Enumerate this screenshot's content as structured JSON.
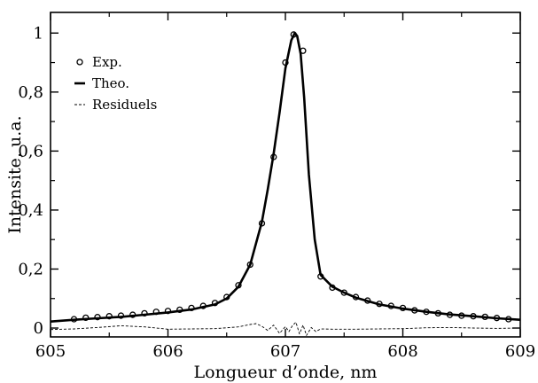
{
  "chart_data": {
    "type": "line",
    "title": "",
    "xlabel": "Longueur d’onde, nm",
    "ylabel": "Intensite, u.a.",
    "xlim": [
      605,
      609
    ],
    "ylim": [
      -0.03,
      1.07
    ],
    "grid": false,
    "legend_position": "top-left",
    "x_ticks": [
      605,
      606,
      607,
      608,
      609
    ],
    "x_tick_labels": [
      "605",
      "606",
      "607",
      "608",
      "609"
    ],
    "y_ticks": [
      0,
      0.2,
      0.4,
      0.6,
      0.8,
      1
    ],
    "y_tick_labels": [
      "0",
      "0,2",
      "0,4",
      "0,6",
      "0,8",
      "1"
    ],
    "series": [
      {
        "name": "Exp.",
        "style": "circles",
        "x": [
          605.2,
          605.3,
          605.4,
          605.5,
          605.6,
          605.7,
          605.8,
          605.9,
          606.0,
          606.1,
          606.2,
          606.3,
          606.4,
          606.5,
          606.6,
          606.7,
          606.8,
          606.9,
          607.0,
          607.07,
          607.15,
          607.3,
          607.4,
          607.5,
          607.6,
          607.7,
          607.8,
          607.9,
          608.0,
          608.1,
          608.2,
          608.3,
          608.4,
          608.5,
          608.6,
          608.7,
          608.8,
          608.9
        ],
        "y": [
          0.03,
          0.035,
          0.037,
          0.04,
          0.042,
          0.045,
          0.05,
          0.055,
          0.058,
          0.062,
          0.068,
          0.075,
          0.085,
          0.105,
          0.145,
          0.215,
          0.355,
          0.58,
          0.9,
          0.995,
          0.94,
          0.175,
          0.137,
          0.12,
          0.105,
          0.093,
          0.082,
          0.075,
          0.068,
          0.06,
          0.055,
          0.05,
          0.045,
          0.042,
          0.04,
          0.038,
          0.034,
          0.03
        ]
      },
      {
        "name": "Theo.",
        "style": "solid",
        "x": [
          605.0,
          605.2,
          605.4,
          605.6,
          605.8,
          606.0,
          606.2,
          606.4,
          606.5,
          606.6,
          606.7,
          606.8,
          606.85,
          606.9,
          606.95,
          607.0,
          607.05,
          607.08,
          607.1,
          607.13,
          607.16,
          607.2,
          607.25,
          607.3,
          607.4,
          607.5,
          607.6,
          607.8,
          608.0,
          608.2,
          608.4,
          608.6,
          608.8,
          609.0
        ],
        "y": [
          0.022,
          0.028,
          0.033,
          0.038,
          0.045,
          0.053,
          0.063,
          0.08,
          0.1,
          0.14,
          0.215,
          0.36,
          0.47,
          0.59,
          0.73,
          0.88,
          0.975,
          1.0,
          0.99,
          0.93,
          0.78,
          0.52,
          0.3,
          0.18,
          0.14,
          0.12,
          0.103,
          0.08,
          0.066,
          0.055,
          0.046,
          0.04,
          0.033,
          0.028
        ]
      },
      {
        "name": "Residuels",
        "style": "dashed",
        "x": [
          605.0,
          605.2,
          605.4,
          605.6,
          605.8,
          606.0,
          606.2,
          606.4,
          606.6,
          606.7,
          606.75,
          606.8,
          606.85,
          606.9,
          606.95,
          607.0,
          607.03,
          607.06,
          607.09,
          607.12,
          607.15,
          607.18,
          607.22,
          607.26,
          607.3,
          607.4,
          607.6,
          607.8,
          608.0,
          608.2,
          608.4,
          608.6,
          608.8,
          609.0
        ],
        "y": [
          -0.005,
          -0.003,
          0.002,
          0.008,
          0.004,
          -0.004,
          -0.003,
          -0.002,
          0.004,
          0.012,
          0.015,
          0.006,
          -0.008,
          0.01,
          -0.018,
          0.005,
          -0.012,
          0.008,
          0.02,
          -0.02,
          0.01,
          -0.025,
          0.002,
          -0.012,
          -0.003,
          -0.004,
          -0.004,
          -0.003,
          -0.002,
          0.001,
          0.002,
          0.0,
          -0.001,
          0.0
        ]
      }
    ]
  }
}
